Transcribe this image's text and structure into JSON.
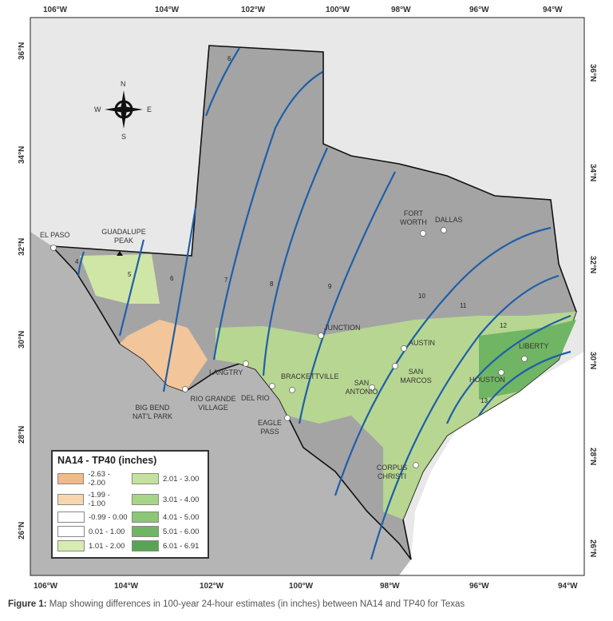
{
  "map": {
    "lon_ticks_top": [
      "106°W",
      "104°W",
      "102°W",
      "100°W",
      "98°W",
      "96°W",
      "94°W"
    ],
    "lon_ticks_bottom": [
      "106°W",
      "104°W",
      "102°W",
      "100°W",
      "98°W",
      "96°W",
      "94°W"
    ],
    "lat_ticks_left": [
      "36°N",
      "34°N",
      "32°N",
      "30°N",
      "28°N",
      "26°N"
    ],
    "lat_ticks_right": [
      "36°N",
      "34°N",
      "32°N",
      "30°N",
      "28°N",
      "26°N"
    ],
    "compass": {
      "n": "N",
      "s": "S",
      "e": "E",
      "w": "W"
    },
    "contour_labels": [
      "4",
      "5",
      "6",
      "6",
      "7",
      "8",
      "9",
      "10",
      "11",
      "12",
      "13"
    ],
    "contour_color": "#1f5fa8",
    "cities": [
      {
        "name": "EL PASO"
      },
      {
        "name": "GUADALUPE PEAK"
      },
      {
        "name": "FORT WORTH"
      },
      {
        "name": "DALLAS"
      },
      {
        "name": "JUNCTION"
      },
      {
        "name": "AUSTIN"
      },
      {
        "name": "SAN MARCOS"
      },
      {
        "name": "SAN ANTONIO"
      },
      {
        "name": "LANGTRY"
      },
      {
        "name": "DEL RIO"
      },
      {
        "name": "BRACKETTVILLE"
      },
      {
        "name": "EAGLE PASS"
      },
      {
        "name": "RIO GRANDE VILLAGE"
      },
      {
        "name": "BIG BEND NAT'L PARK"
      },
      {
        "name": "HOUSTON"
      },
      {
        "name": "LIBERTY"
      },
      {
        "name": "CORPUS CHRISTI"
      }
    ]
  },
  "legend": {
    "title": "NA14 - TP40 (inches)",
    "items": [
      {
        "label": "-2.63 - -2.00",
        "color": "#f2b98a"
      },
      {
        "label": "-1.99 - -1.00",
        "color": "#f8d6ad"
      },
      {
        "label": "-0.99 - 0.00",
        "color": "#ffffff"
      },
      {
        "label": "0.01 - 1.00",
        "color": "#ffffff"
      },
      {
        "label": "1.01 - 2.00",
        "color": "#d6ecb0"
      },
      {
        "label": "2.01 - 3.00",
        "color": "#c3e39b"
      },
      {
        "label": "3.01 - 4.00",
        "color": "#a8d488"
      },
      {
        "label": "4.01 - 5.00",
        "color": "#8cc676"
      },
      {
        "label": "5.01 - 6.00",
        "color": "#70b563"
      },
      {
        "label": "6.01 - 6.91",
        "color": "#57a553"
      }
    ]
  },
  "caption": {
    "label": "Figure 1:",
    "text": " Map showing differences in 100-year 24-hour estimates (in inches) between NA14 and TP40 for Texas"
  }
}
